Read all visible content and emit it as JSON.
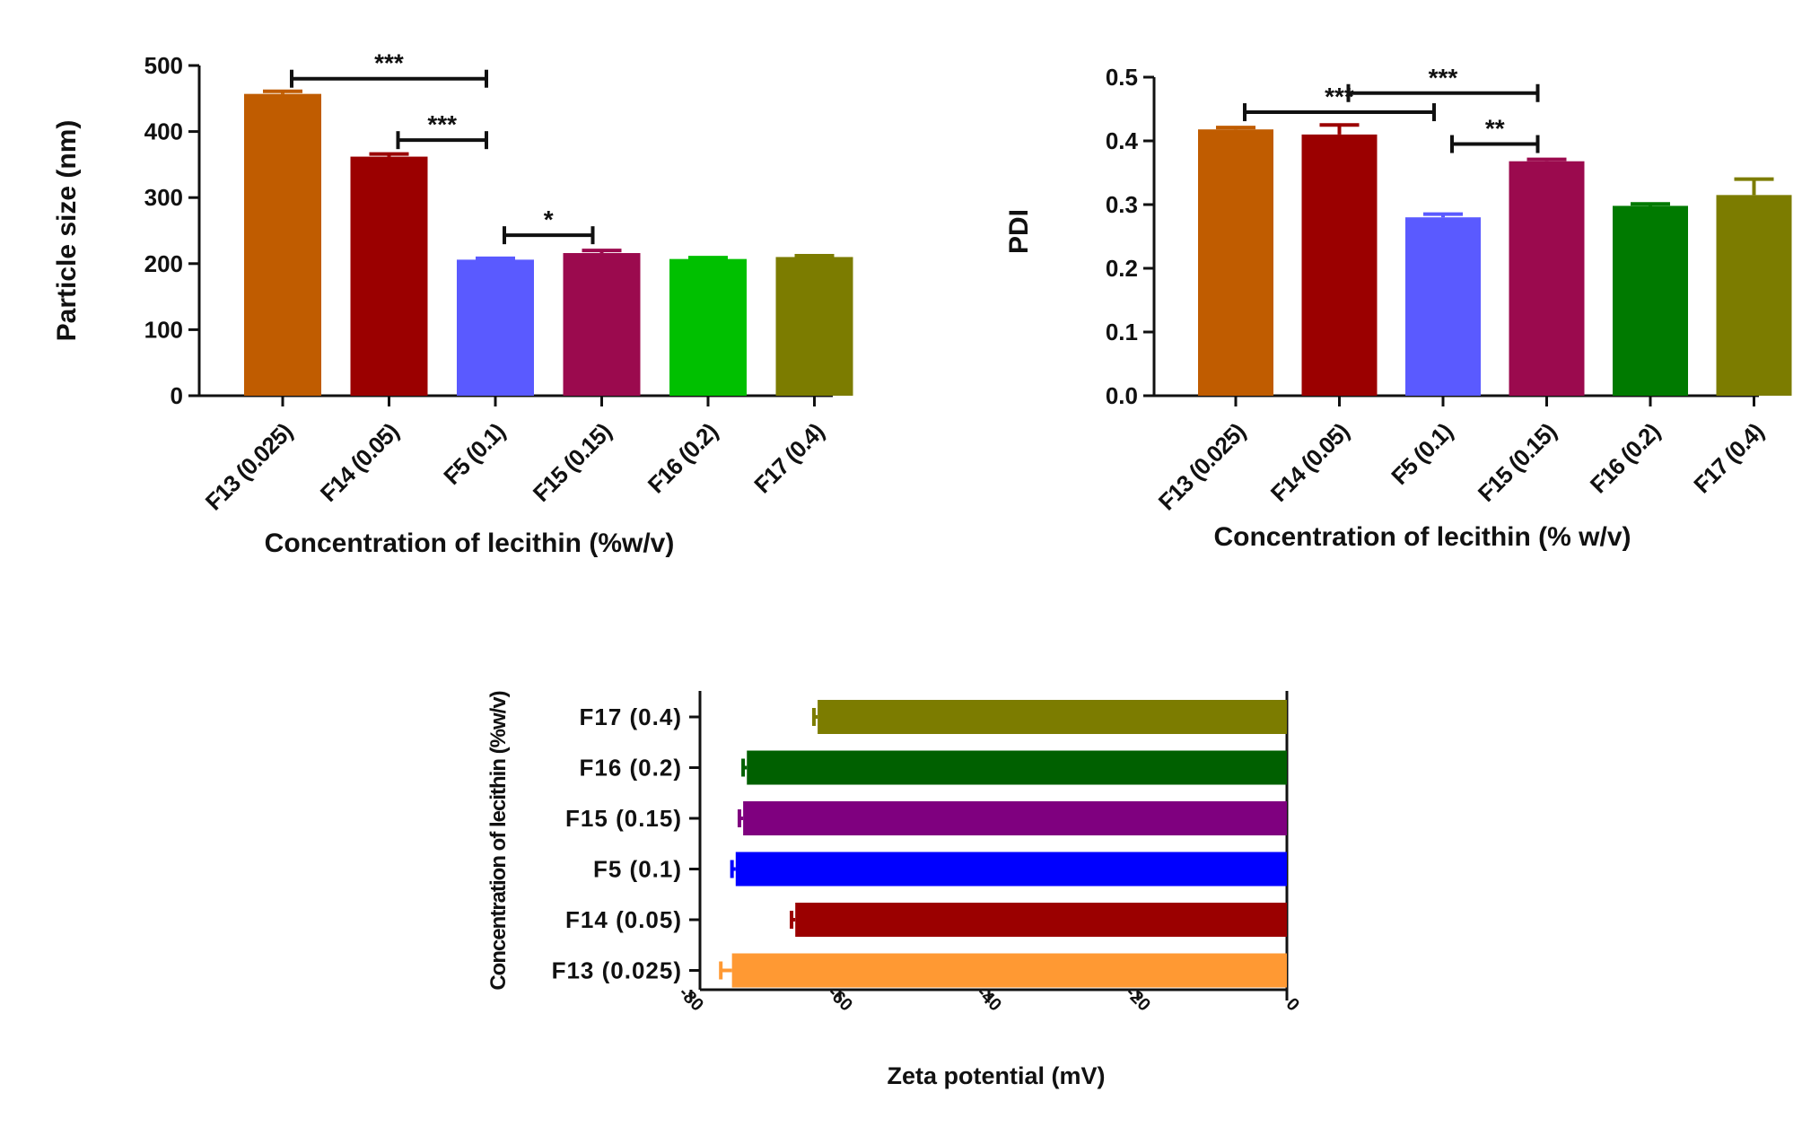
{
  "chart_data": [
    {
      "type": "bar",
      "orientation": "vertical",
      "categories": [
        "F13 (0.025)",
        "F14 (0.05)",
        "F5 (0.1)",
        "F15 (0.15)",
        "F16 (0.2)",
        "F17 (0.4)"
      ],
      "values": [
        457,
        362,
        206,
        216,
        207,
        210
      ],
      "errors": [
        4,
        4,
        2,
        4,
        2,
        2
      ],
      "colors": [
        "#c05c00",
        "#9b0000",
        "#5a5aff",
        "#9b0a4e",
        "#00c000",
        "#7c7c00"
      ],
      "ylabel": "Particle size (nm)",
      "xlabel": "Concentration of lecithin (%w/v)",
      "ylim": [
        0,
        500
      ],
      "yticks": [
        "0",
        "100",
        "200",
        "300",
        "400",
        "500"
      ],
      "significance": [
        {
          "from": 0,
          "to": 2,
          "label": "***",
          "y": 480
        },
        {
          "from": 1,
          "to": 2,
          "label": "***",
          "y": 387
        },
        {
          "from": 2,
          "to": 3,
          "label": "*",
          "y": 243
        }
      ]
    },
    {
      "type": "bar",
      "orientation": "vertical",
      "categories": [
        "F13 (0.025)",
        "F14 (0.05)",
        "F5 (0.1)",
        "F15 (0.15)",
        "F16 (0.2)",
        "F17 (0.4)"
      ],
      "values": [
        0.418,
        0.41,
        0.28,
        0.368,
        0.298,
        0.315
      ],
      "errors": [
        0.003,
        0.015,
        0.005,
        0.003,
        0.003,
        0.025
      ],
      "colors": [
        "#c05c00",
        "#9b0000",
        "#5a5aff",
        "#9b0a4e",
        "#007a00",
        "#7c7c00"
      ],
      "ylabel": "PDI",
      "xlabel": "Concentration of lecithin (% w/v)",
      "ylim": [
        0,
        0.5
      ],
      "yticks": [
        "0.0",
        "0.1",
        "0.2",
        "0.3",
        "0.4",
        "0.5"
      ],
      "significance": [
        {
          "from": 0,
          "to": 2,
          "label": "***",
          "y": 0.445
        },
        {
          "from": 1,
          "to": 3,
          "label": "***",
          "y": 0.475
        },
        {
          "from": 2,
          "to": 3,
          "label": "**",
          "y": 0.395
        }
      ]
    },
    {
      "type": "bar",
      "orientation": "horizontal",
      "categories": [
        "F17 (0.4)",
        "F16 (0.2)",
        "F15 (0.15)",
        "F5 (0.1)",
        "F14 (0.05)",
        "F13 (0.025)"
      ],
      "values": [
        -63,
        -72.5,
        -73,
        -74,
        -66,
        -74.5
      ],
      "errors": [
        0.5,
        0.5,
        0.5,
        0.5,
        0.5,
        1.5
      ],
      "colors": [
        "#7c7c00",
        "#006000",
        "#7f007f",
        "#0000ff",
        "#9b0000",
        "#ff9933"
      ],
      "xlabel": "Zeta potential (mV)",
      "ylabel": "Concentration of lecithin (%w/v)",
      "xlim": [
        -80,
        0
      ],
      "xticks": [
        "-80",
        "-60",
        "-40",
        "-20",
        "0"
      ]
    }
  ]
}
